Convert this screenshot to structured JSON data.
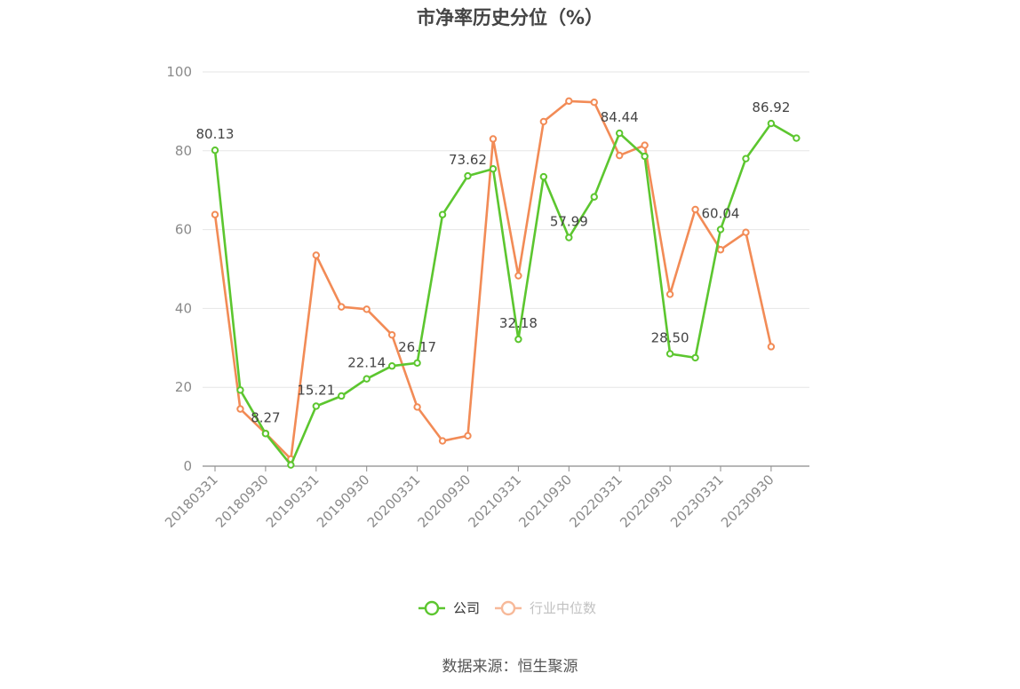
{
  "title": "市净率历史分位（%）",
  "source": "数据来源：恒生聚源",
  "colors": {
    "company": "#5cc62f",
    "industry": "#f28b56",
    "grid": "#e6e6e6",
    "axis": "#8c8c8c"
  },
  "chart_data": {
    "type": "line",
    "ylim": [
      0,
      100
    ],
    "yticks": [
      0,
      20,
      40,
      60,
      80,
      100
    ],
    "x": [
      "20180331",
      "20180630",
      "20180930",
      "20181231",
      "20190331",
      "20190630",
      "20190930",
      "20191231",
      "20200331",
      "20200630",
      "20200930",
      "20201231",
      "20210331",
      "20210630",
      "20210930",
      "20211231",
      "20220331",
      "20220630",
      "20220930",
      "20221231",
      "20230331",
      "20230630",
      "20230930",
      "20231231"
    ],
    "xtick_labels": [
      "20180331",
      "20180930",
      "20190331",
      "20190930",
      "20200331",
      "20200930",
      "20210331",
      "20210930",
      "20220331",
      "20220930",
      "20230331",
      "20230930"
    ],
    "grid": true,
    "legend_position": "bottom",
    "series": [
      {
        "name": "公司",
        "values": [
          80.13,
          19.3,
          8.27,
          0.3,
          15.21,
          17.8,
          22.14,
          25.4,
          26.17,
          63.8,
          73.62,
          75.4,
          32.18,
          73.4,
          57.99,
          68.3,
          84.44,
          78.6,
          28.5,
          27.5,
          60.04,
          78.0,
          86.92,
          83.2
        ],
        "labels": {
          "0": "80.13",
          "2": "8.27",
          "4": "15.21",
          "6": "22.14",
          "8": "26.17",
          "10": "73.62",
          "12": "32.18",
          "14": "57.99",
          "16": "84.44",
          "18": "28.50",
          "20": "60.04",
          "22": "86.92"
        }
      },
      {
        "name": "行业中位数",
        "values": [
          63.8,
          14.5,
          8.3,
          1.8,
          53.5,
          40.4,
          39.8,
          33.3,
          15.0,
          6.4,
          7.7,
          83.0,
          48.3,
          87.4,
          92.6,
          92.3,
          78.8,
          81.4,
          43.6,
          65.1,
          54.9,
          59.3,
          30.3,
          null
        ],
        "labels": {}
      }
    ]
  }
}
